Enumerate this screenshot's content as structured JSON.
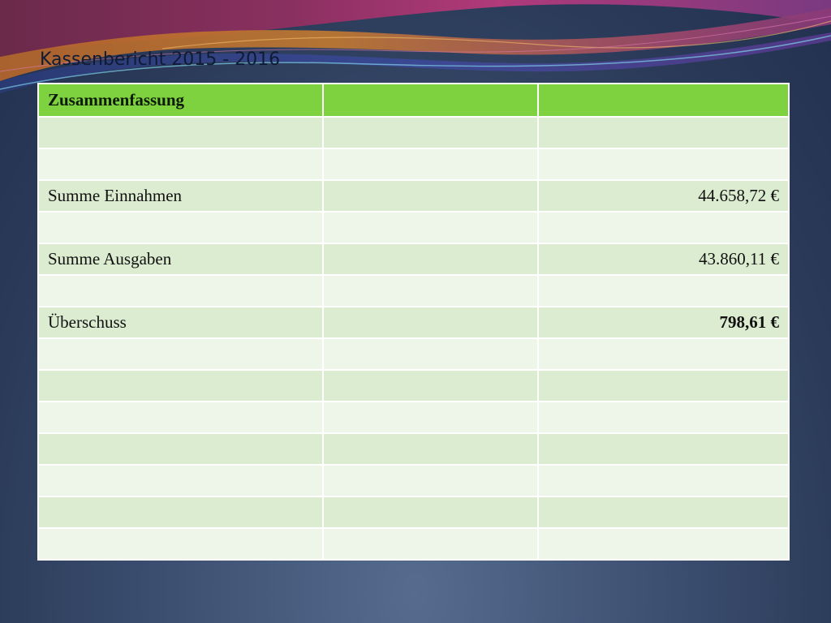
{
  "slide": {
    "title": "Kassenbericht 2015 - 2016"
  },
  "table": {
    "header": [
      "Zusammenfassung",
      "",
      ""
    ],
    "rows": [
      {
        "label": "",
        "col2": "",
        "value": ""
      },
      {
        "label": "",
        "col2": "",
        "value": ""
      },
      {
        "label": "Summe Einnahmen",
        "col2": "",
        "value": "44.658,72 €"
      },
      {
        "label": "",
        "col2": "",
        "value": ""
      },
      {
        "label": "Summe Ausgaben",
        "col2": "",
        "value": "43.860,11 €"
      },
      {
        "label": "",
        "col2": "",
        "value": ""
      },
      {
        "label": "Überschuss",
        "col2": "",
        "value": "798,61 €",
        "bold": true
      },
      {
        "label": "",
        "col2": "",
        "value": ""
      },
      {
        "label": "",
        "col2": "",
        "value": ""
      },
      {
        "label": "",
        "col2": "",
        "value": ""
      },
      {
        "label": "",
        "col2": "",
        "value": ""
      },
      {
        "label": "",
        "col2": "",
        "value": ""
      },
      {
        "label": "",
        "col2": "",
        "value": ""
      },
      {
        "label": "",
        "col2": "",
        "value": ""
      }
    ]
  },
  "colors": {
    "header_green": "#7ed23f",
    "row_dark": "#dbecd0",
    "row_light": "#eef6e9",
    "background": "#3e5173"
  }
}
